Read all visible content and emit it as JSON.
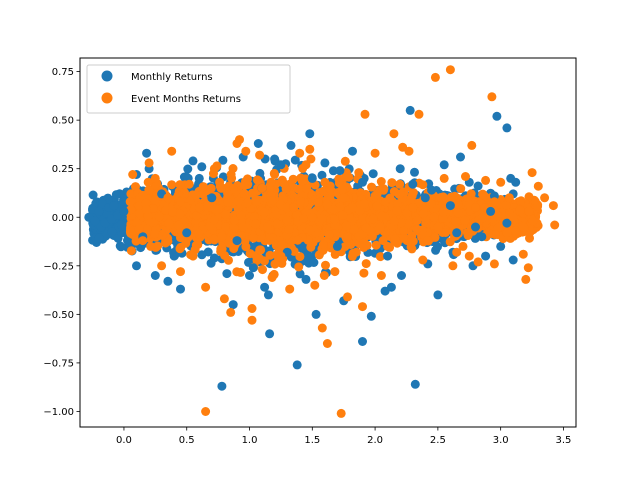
{
  "chart_data": {
    "type": "scatter",
    "title": "",
    "xlabel": "",
    "ylabel": "",
    "xlim": [
      -0.35,
      3.6
    ],
    "ylim": [
      -1.08,
      0.82
    ],
    "xticks": [
      0.0,
      0.5,
      1.0,
      1.5,
      2.0,
      2.5,
      3.0,
      3.5
    ],
    "xtick_labels": [
      "0.0",
      "0.5",
      "1.0",
      "1.5",
      "2.0",
      "2.5",
      "3.0",
      "3.5"
    ],
    "yticks": [
      -1.0,
      -0.75,
      -0.5,
      -0.25,
      0.0,
      0.25,
      0.5,
      0.75
    ],
    "ytick_labels": [
      "−1.00",
      "−0.75",
      "−0.50",
      "−0.25",
      "0.00",
      "0.25",
      "0.50",
      "0.75"
    ],
    "grid": false,
    "legend_position": "top-left",
    "series": [
      {
        "name": "Monthly Returns",
        "color": "#1f77b4",
        "points": [
          [
            -0.28,
            0.0
          ],
          [
            -0.25,
            0.04
          ],
          [
            -0.23,
            -0.02
          ],
          [
            -0.2,
            0.03
          ],
          [
            -0.18,
            -0.05
          ],
          [
            -0.17,
            0.07
          ],
          [
            -0.15,
            -0.03
          ],
          [
            -0.12,
            0.05
          ],
          [
            -0.1,
            -0.01
          ],
          [
            -0.08,
            0.06
          ],
          [
            -0.05,
            0.01
          ],
          [
            -0.02,
            -0.04
          ],
          [
            0.1,
            0.22
          ],
          [
            0.15,
            -0.1
          ],
          [
            0.18,
            0.33
          ],
          [
            0.2,
            0.25
          ],
          [
            0.1,
            -0.25
          ],
          [
            0.25,
            -0.3
          ],
          [
            0.35,
            -0.33
          ],
          [
            0.45,
            -0.37
          ],
          [
            0.55,
            0.29
          ],
          [
            0.62,
            0.26
          ],
          [
            0.72,
            -0.21
          ],
          [
            0.82,
            -0.29
          ],
          [
            0.87,
            -0.45
          ],
          [
            0.78,
            -0.87
          ],
          [
            0.95,
            0.31
          ],
          [
            1.03,
            -0.26
          ],
          [
            1.07,
            0.38
          ],
          [
            1.12,
            -0.36
          ],
          [
            1.15,
            -0.4
          ],
          [
            1.16,
            -0.6
          ],
          [
            1.25,
            0.27
          ],
          [
            1.33,
            0.37
          ],
          [
            1.38,
            -0.76
          ],
          [
            1.48,
            0.43
          ],
          [
            1.53,
            -0.5
          ],
          [
            1.72,
            0.24
          ],
          [
            1.75,
            -0.43
          ],
          [
            1.82,
            0.34
          ],
          [
            1.9,
            -0.64
          ],
          [
            1.97,
            -0.51
          ],
          [
            2.08,
            -0.38
          ],
          [
            2.13,
            -0.36
          ],
          [
            2.21,
            -0.3
          ],
          [
            2.28,
            0.55
          ],
          [
            2.32,
            -0.86
          ],
          [
            2.42,
            -0.24
          ],
          [
            2.5,
            -0.4
          ],
          [
            2.55,
            0.27
          ],
          [
            2.68,
            0.31
          ],
          [
            2.75,
            0.18
          ],
          [
            2.85,
            -0.1
          ],
          [
            2.92,
            0.03
          ],
          [
            2.95,
            0.11
          ],
          [
            2.97,
            0.52
          ],
          [
            3.05,
            0.46
          ],
          [
            3.08,
            0.2
          ],
          [
            3.12,
            0.18
          ],
          [
            3.1,
            -0.22
          ],
          [
            3.1,
            0.12
          ],
          [
            3.0,
            -0.15
          ],
          [
            2.88,
            -0.2
          ],
          [
            2.78,
            -0.25
          ],
          [
            2.62,
            -0.18
          ],
          [
            2.45,
            0.14
          ],
          [
            0.0,
            0.03
          ],
          [
            0.3,
            0.12
          ],
          [
            0.5,
            -0.08
          ],
          [
            0.7,
            0.1
          ],
          [
            0.9,
            -0.12
          ],
          [
            1.1,
            0.15
          ],
          [
            1.3,
            -0.18
          ],
          [
            1.5,
            0.2
          ],
          [
            1.7,
            -0.15
          ],
          [
            1.9,
            0.18
          ],
          [
            2.1,
            -0.2
          ],
          [
            2.3,
            0.17
          ],
          [
            2.6,
            0.06
          ],
          [
            2.8,
            -0.05
          ],
          [
            3.05,
            -0.03
          ],
          [
            1.0,
            -0.3
          ],
          [
            1.2,
            0.3
          ],
          [
            1.6,
            0.28
          ],
          [
            1.45,
            -0.32
          ],
          [
            0.6,
            0.2
          ],
          [
            0.4,
            -0.2
          ],
          [
            2.2,
            0.25
          ],
          [
            2.4,
            0.1
          ],
          [
            2.65,
            -0.08
          ]
        ]
      },
      {
        "name": "Event Months Returns",
        "color": "#ff7f0e",
        "points": [
          [
            0.07,
            0.22
          ],
          [
            0.15,
            -0.12
          ],
          [
            0.2,
            0.28
          ],
          [
            0.25,
            0.2
          ],
          [
            0.3,
            -0.25
          ],
          [
            0.38,
            0.34
          ],
          [
            0.45,
            -0.28
          ],
          [
            0.52,
            0.17
          ],
          [
            0.55,
            -0.2
          ],
          [
            0.65,
            -0.36
          ],
          [
            0.65,
            -1.0
          ],
          [
            0.72,
            0.25
          ],
          [
            0.8,
            -0.42
          ],
          [
            0.85,
            -0.49
          ],
          [
            0.9,
            0.38
          ],
          [
            0.92,
            0.4
          ],
          [
            0.97,
            0.34
          ],
          [
            1.02,
            -0.47
          ],
          [
            1.02,
            -0.53
          ],
          [
            1.08,
            0.32
          ],
          [
            1.18,
            -0.31
          ],
          [
            1.32,
            -0.37
          ],
          [
            1.4,
            0.33
          ],
          [
            1.45,
            0.27
          ],
          [
            1.48,
            0.35
          ],
          [
            1.52,
            -0.35
          ],
          [
            1.58,
            -0.57
          ],
          [
            1.62,
            -0.65
          ],
          [
            1.73,
            -1.01
          ],
          [
            1.78,
            -0.41
          ],
          [
            1.87,
            0.23
          ],
          [
            1.9,
            -0.46
          ],
          [
            1.92,
            0.53
          ],
          [
            2.0,
            0.33
          ],
          [
            2.05,
            -0.3
          ],
          [
            2.15,
            0.43
          ],
          [
            2.22,
            0.36
          ],
          [
            2.27,
            0.34
          ],
          [
            2.35,
            0.53
          ],
          [
            2.48,
            0.72
          ],
          [
            2.6,
            0.76
          ],
          [
            2.65,
            -0.18
          ],
          [
            2.72,
            0.21
          ],
          [
            2.77,
            0.37
          ],
          [
            2.82,
            -0.23
          ],
          [
            2.88,
            0.19
          ],
          [
            2.93,
            0.62
          ],
          [
            3.0,
            0.18
          ],
          [
            3.02,
            -0.11
          ],
          [
            3.07,
            0.1
          ],
          [
            3.12,
            -0.07
          ],
          [
            3.18,
            -0.19
          ],
          [
            3.2,
            -0.32
          ],
          [
            3.22,
            -0.26
          ],
          [
            3.25,
            0.23
          ],
          [
            3.3,
            0.16
          ],
          [
            3.35,
            0.1
          ],
          [
            3.42,
            0.06
          ],
          [
            3.43,
            -0.04
          ],
          [
            2.95,
            -0.24
          ],
          [
            2.7,
            -0.15
          ],
          [
            2.55,
            0.2
          ],
          [
            2.42,
            -0.12
          ],
          [
            0.05,
            0.08
          ],
          [
            0.12,
            -0.06
          ],
          [
            0.35,
            0.1
          ],
          [
            0.6,
            0.05
          ],
          [
            0.78,
            -0.1
          ],
          [
            1.1,
            0.15
          ],
          [
            1.25,
            -0.2
          ],
          [
            1.6,
            0.18
          ],
          [
            1.75,
            0.1
          ],
          [
            2.1,
            -0.15
          ],
          [
            2.3,
            0.05
          ],
          [
            2.5,
            -0.05
          ],
          [
            1.35,
            0.05
          ],
          [
            0.95,
            -0.05
          ],
          [
            1.85,
            -0.18
          ],
          [
            2.8,
            0.05
          ],
          [
            3.1,
            0.0
          ],
          [
            2.62,
            -0.25
          ],
          [
            2.75,
            -0.2
          ],
          [
            2.95,
            0.08
          ],
          [
            3.05,
            -0.08
          ],
          [
            1.5,
            0.0
          ],
          [
            1.2,
            0.22
          ],
          [
            0.45,
            0.08
          ],
          [
            2.2,
            0.12
          ],
          [
            1.68,
            -0.28
          ],
          [
            2.38,
            -0.22
          ]
        ]
      }
    ]
  }
}
